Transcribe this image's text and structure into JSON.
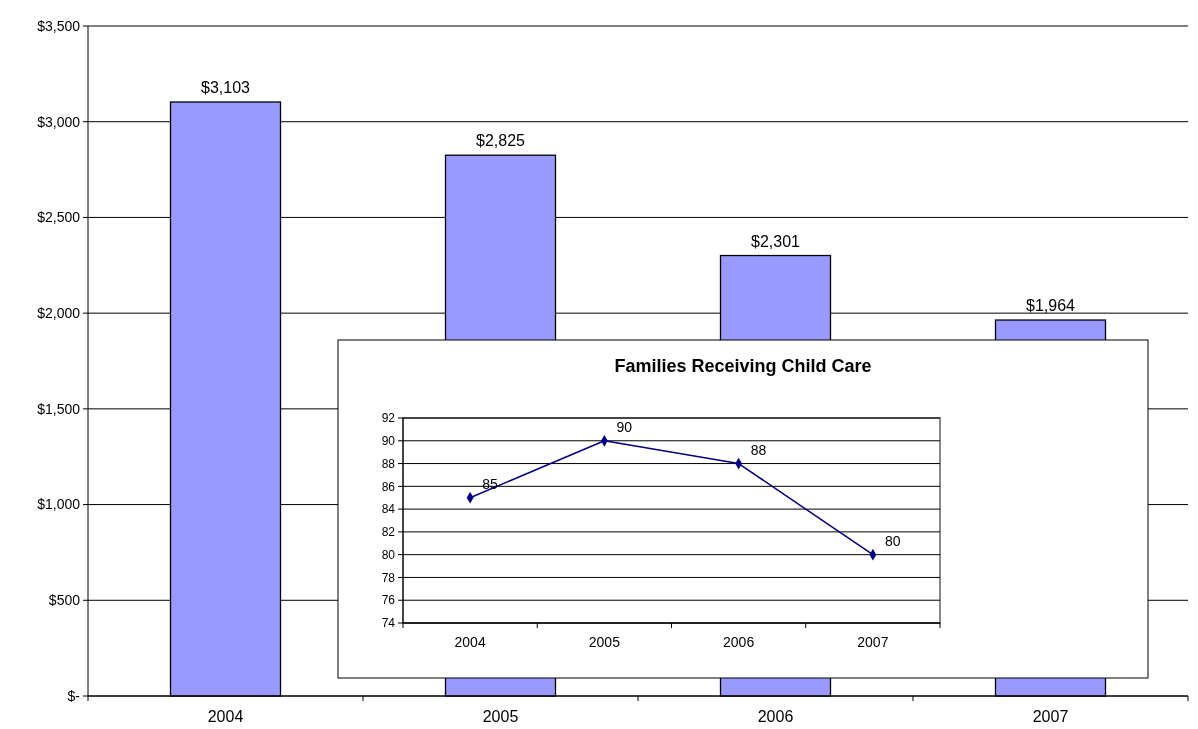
{
  "chart_data": [
    {
      "type": "bar",
      "categories": [
        "2004",
        "2005",
        "2006",
        "2007"
      ],
      "values": [
        3103,
        2825,
        2301,
        1964
      ],
      "value_labels": [
        "$3,103",
        "$2,825",
        "$2,301",
        "$1,964"
      ],
      "color": "#9999ff",
      "ylim": [
        0,
        3500
      ],
      "yticks": [
        {
          "value": 0,
          "label": "$-"
        },
        {
          "value": 500,
          "label": "$500"
        },
        {
          "value": 1000,
          "label": "$1,000"
        },
        {
          "value": 1500,
          "label": "$1,500"
        },
        {
          "value": 2000,
          "label": "$2,000"
        },
        {
          "value": 2500,
          "label": "$2,500"
        },
        {
          "value": 3000,
          "label": "$3,000"
        },
        {
          "value": 3500,
          "label": "$3,500"
        }
      ],
      "grid": "y"
    },
    {
      "type": "line",
      "title": "Families Receiving Child Care",
      "categories": [
        "2004",
        "2005",
        "2006",
        "2007"
      ],
      "values": [
        85,
        90,
        88,
        80
      ],
      "color": "#000080",
      "marker": "diamond",
      "ylim": [
        74,
        92
      ],
      "yticks": [
        74,
        76,
        78,
        80,
        82,
        84,
        86,
        88,
        90,
        92
      ],
      "grid": "y",
      "data_labels": true
    }
  ]
}
